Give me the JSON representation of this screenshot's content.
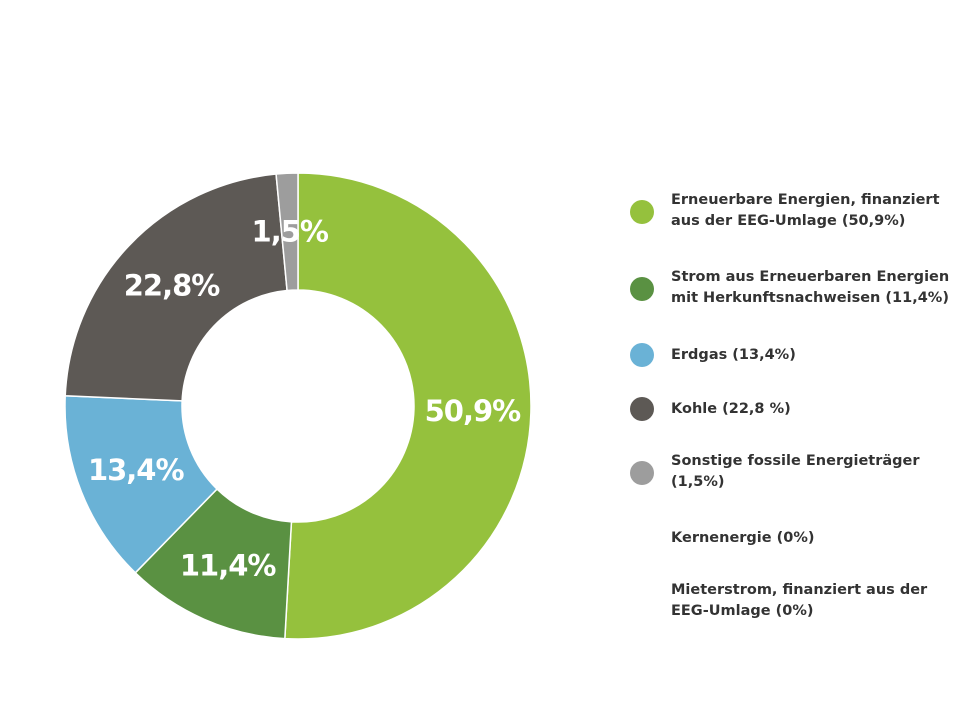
{
  "colors": {
    "light_green": "#95c13d",
    "dark_green": "#5a9142",
    "blue": "#6ab2d6",
    "dark_gray": "#5d5955",
    "light_gray": "#9d9d9d",
    "background": "#ffffff",
    "text": "#333333"
  },
  "chart_data": {
    "type": "pie",
    "variant": "donut",
    "title": "",
    "categories": [
      "Erneuerbare Energien, finanziert aus der EEG-Umlage (50,9%)",
      "Strom aus Erneuerbaren Energien mit Herkunftsnachweisen (11,4%)",
      "Erdgas (13,4%)",
      "Kohle (22,8 %)",
      "Sonstige fossile Energieträger (1,5%)",
      "Kernenergie (0%)",
      "Mieterstrom, finanziert aus der EEG-Umlage (0%)"
    ],
    "values": [
      50.9,
      11.4,
      13.4,
      22.8,
      1.5,
      0,
      0
    ],
    "slice_labels": [
      "50,9%",
      "11,4%",
      "13,4%",
      "22,8%",
      "1,5%",
      "",
      ""
    ],
    "slice_colors": [
      "#95c13d",
      "#5a9142",
      "#6ab2d6",
      "#5d5955",
      "#9d9d9d",
      "",
      ""
    ],
    "legend_placement": "right",
    "start": "top, clockwise"
  }
}
